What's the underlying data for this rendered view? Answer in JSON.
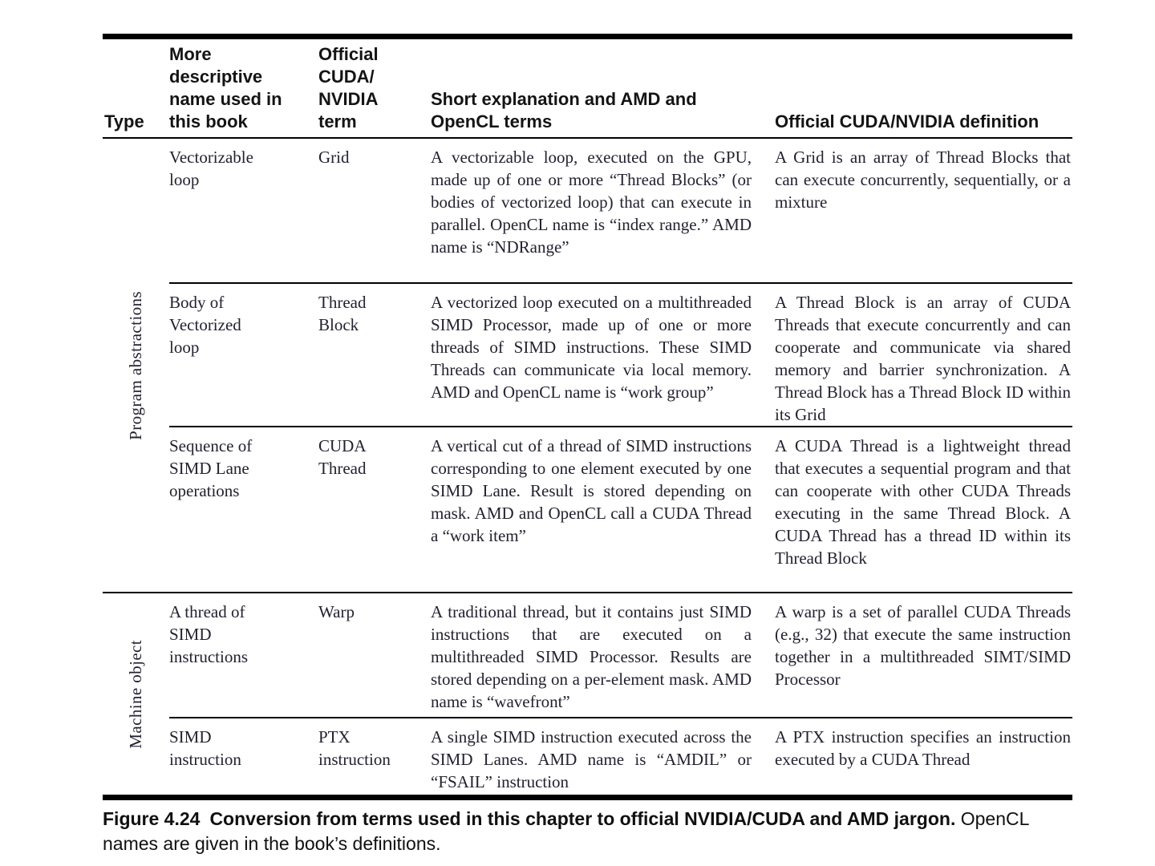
{
  "table": {
    "headers": {
      "type": "Type",
      "descriptive_name": "More\ndescriptive\nname used in\nthis book",
      "cuda_term": "Official\nCUDA/\nNVIDIA\nterm",
      "explanation": "Short explanation and AMD and\nOpenCL terms",
      "definition": "Official CUDA/NVIDIA definition"
    },
    "groups": [
      {
        "label": "Program abstractions",
        "rows": [
          {
            "name": "Vectorizable loop",
            "term": "Grid",
            "explanation": "A vectorizable loop, executed on the GPU, made up of one or more “Thread Blocks” (or bodies of vectorized loop) that can execute in parallel. OpenCL name is “index range.” AMD name is “NDRange”",
            "definition": "A Grid is an array of Thread Blocks that can execute concurrently, sequentially, or a mixture"
          },
          {
            "name": "Body of Vectorized loop",
            "term": "Thread Block",
            "explanation": "A vectorized loop executed on a multithreaded SIMD Processor, made up of one or more threads of SIMD instructions. These SIMD Threads can communicate via local memory. AMD and OpenCL name is “work group”",
            "definition": "A Thread Block is an array of CUDA Threads that execute concurrently and can cooperate and communicate via shared memory and barrier synchronization. A Thread Block has a Thread Block ID within its Grid"
          },
          {
            "name": "Sequence of SIMD Lane operations",
            "term": "CUDA Thread",
            "explanation": "A vertical cut of a thread of SIMD instructions corresponding to one element executed by one SIMD Lane. Result is stored depending on mask. AMD and OpenCL call a CUDA Thread a “work item”",
            "definition": "A CUDA Thread is a lightweight thread that executes a sequential program and that can cooperate with other CUDA Threads executing in the same Thread Block. A CUDA Thread has a thread ID within its Thread Block"
          }
        ]
      },
      {
        "label": "Machine object",
        "rows": [
          {
            "name": "A thread of SIMD instructions",
            "term": "Warp",
            "explanation": "A traditional thread, but it contains just SIMD instructions that are executed on a multithreaded SIMD Processor. Results are stored depending on a per-element mask. AMD name is “wavefront”",
            "definition": "A warp is a set of parallel CUDA Threads (e.g., 32) that execute the same instruction together in a multithreaded SIMT/SIMD Processor"
          },
          {
            "name": "SIMD instruction",
            "term": "PTX instruction",
            "explanation": "A single SIMD instruction executed across the SIMD Lanes. AMD name is “AMDIL” or “FSAIL” instruction",
            "definition": "A PTX instruction specifies an instruction executed by a CUDA Thread"
          }
        ]
      }
    ]
  },
  "caption": {
    "label": "Figure 4.24",
    "bold_text": "Conversion from terms used in this chapter to official NVIDIA/CUDA and AMD jargon.",
    "normal_text": "OpenCL names are given in the book’s definitions."
  }
}
